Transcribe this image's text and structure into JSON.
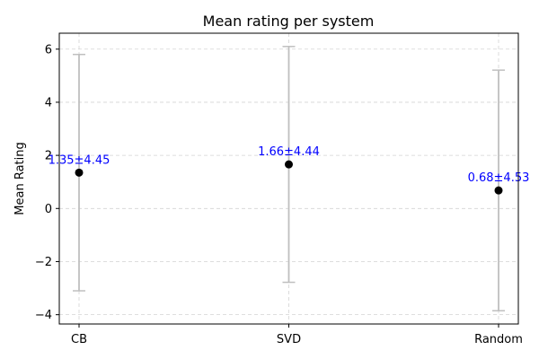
{
  "chart_data": {
    "type": "scatter",
    "title": "Mean rating per system",
    "xlabel": "",
    "ylabel": "Mean Rating",
    "categories": [
      "CB",
      "SVD",
      "Random"
    ],
    "means": [
      1.35,
      1.66,
      0.68
    ],
    "errors": [
      4.45,
      4.44,
      4.53
    ],
    "point_labels": [
      "1.35±4.45",
      "1.66±4.44",
      "0.68±4.53"
    ],
    "ylim": [
      -4.35,
      6.6
    ],
    "yticks": [
      -4,
      -2,
      0,
      2,
      4,
      6
    ],
    "ytick_labels": [
      "−4",
      "−2",
      "0",
      "2",
      "4",
      "6"
    ],
    "grid": true,
    "legend": "none",
    "colors": {
      "point": "#000000",
      "errorbar": "#bfbfbf",
      "label": "#0000ff"
    }
  }
}
